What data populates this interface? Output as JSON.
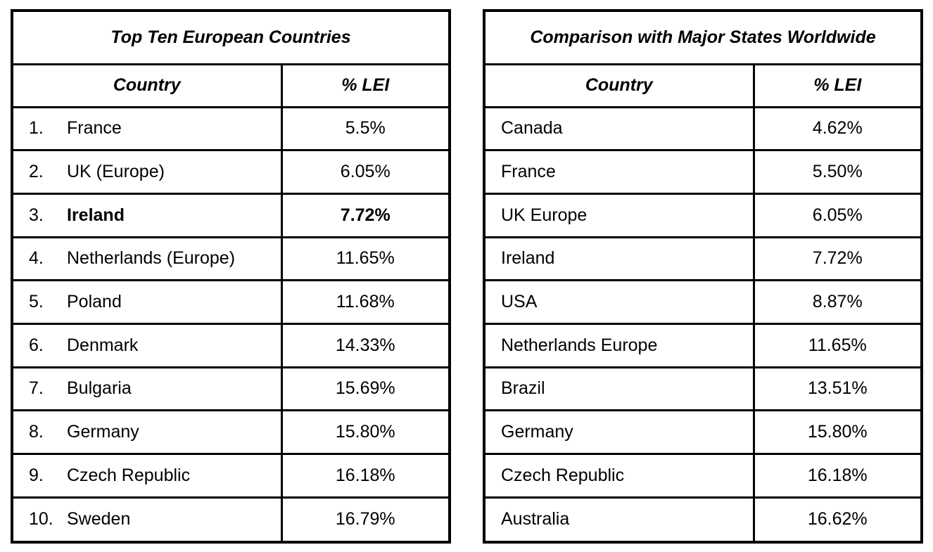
{
  "left_table": {
    "title": "Top Ten European Countries",
    "headers": {
      "country": "Country",
      "value": "% LEI"
    },
    "rows": [
      {
        "rank": "1.",
        "country": "France",
        "value": "5.5%"
      },
      {
        "rank": "2.",
        "country": "UK (Europe)",
        "value": "6.05%"
      },
      {
        "rank": "3.",
        "country": "Ireland",
        "value": "7.72%"
      },
      {
        "rank": "4.",
        "country": "Netherlands (Europe)",
        "value": "11.65%"
      },
      {
        "rank": "5.",
        "country": "Poland",
        "value": "11.68%"
      },
      {
        "rank": "6.",
        "country": "Denmark",
        "value": "14.33%"
      },
      {
        "rank": "7.",
        "country": "Bulgaria",
        "value": "15.69%"
      },
      {
        "rank": "8.",
        "country": "Germany",
        "value": "15.80%"
      },
      {
        "rank": "9.",
        "country": "Czech Republic",
        "value": "16.18%"
      },
      {
        "rank": "10.",
        "country": "Sweden",
        "value": "16.79%"
      }
    ]
  },
  "right_table": {
    "title": "Comparison with Major States Worldwide",
    "headers": {
      "country": "Country",
      "value": "% LEI"
    },
    "rows": [
      {
        "country": "Canada",
        "value": "4.62%"
      },
      {
        "country": "France",
        "value": "5.50%"
      },
      {
        "country": "UK Europe",
        "value": "6.05%"
      },
      {
        "country": "Ireland",
        "value": "7.72%"
      },
      {
        "country": "USA",
        "value": "8.87%"
      },
      {
        "country": "Netherlands Europe",
        "value": "11.65%"
      },
      {
        "country": "Brazil",
        "value": "13.51%"
      },
      {
        "country": "Germany",
        "value": "15.80%"
      },
      {
        "country": "Czech Republic",
        "value": "16.18%"
      },
      {
        "country": "Australia",
        "value": "16.62%"
      }
    ]
  }
}
